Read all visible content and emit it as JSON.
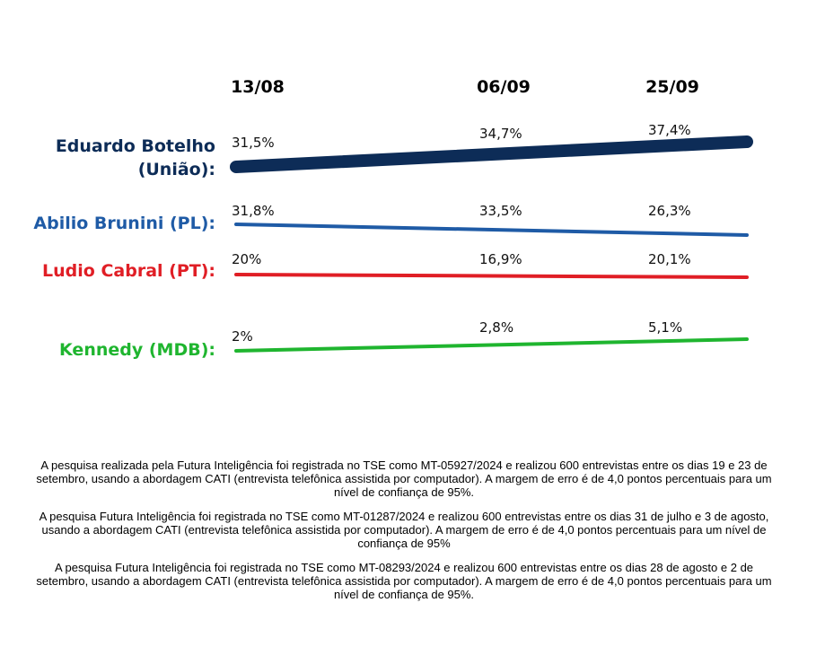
{
  "chart_data": {
    "type": "line",
    "categories": [
      "13/08",
      "06/09",
      "25/09"
    ],
    "series": [
      {
        "name": "Eduardo Botelho (União):",
        "name_lines": [
          "Eduardo Botelho",
          "(União):"
        ],
        "values": [
          31.5,
          34.7,
          37.4
        ],
        "labels": [
          "31,5%",
          "34,7%",
          "37,4%"
        ],
        "color": "#0d2c57"
      },
      {
        "name": "Abilio Brunini (PL):",
        "name_lines": [
          "Abilio Brunini (PL):"
        ],
        "values": [
          31.8,
          33.5,
          26.3
        ],
        "labels": [
          "31,8%",
          "33,5%",
          "26,3%"
        ],
        "color": "#1f5ba6"
      },
      {
        "name": "Ludio Cabral (PT):",
        "name_lines": [
          "Ludio Cabral (PT):"
        ],
        "values": [
          20,
          16.9,
          20.1
        ],
        "labels": [
          "20%",
          "16,9%",
          "20,1%"
        ],
        "color": "#e01e25"
      },
      {
        "name": "Kennedy (MDB):",
        "name_lines": [
          "Kennedy (MDB):"
        ],
        "values": [
          2,
          2.8,
          5.1
        ],
        "labels": [
          "2%",
          "2,8%",
          "5,1%"
        ],
        "color": "#1fb52f"
      }
    ],
    "grid": false
  },
  "notes": [
    "A pesquisa realizada pela Futura Inteligência foi registrada no TSE como MT-05927/2024 e realizou 600 entrevistas entre os dias 19 e 23 de setembro, usando a abordagem CATI (entrevista telefônica assistida por computador). A margem de erro é de 4,0 pontos percentuais para um nível de confiança de 95%.",
    "A pesquisa  Futura Inteligência foi registrada no TSE como MT-01287/2024 e realizou 600 entrevistas entre os dias 31 de julho e 3 de agosto, usando a abordagem CATI (entrevista telefônica assistida por computador). A margem de erro é de 4,0 pontos percentuais para um nível de confiança de 95%",
    "A pesquisa Futura Inteligência foi registrada no TSE como MT-08293/2024 e realizou 600 entrevistas entre os dias 28 de agosto e 2 de setembro, usando a abordagem CATI (entrevista telefônica assistida por computador). A margem de erro é de 4,0 pontos percentuais para um nível de confiança de 95%."
  ]
}
